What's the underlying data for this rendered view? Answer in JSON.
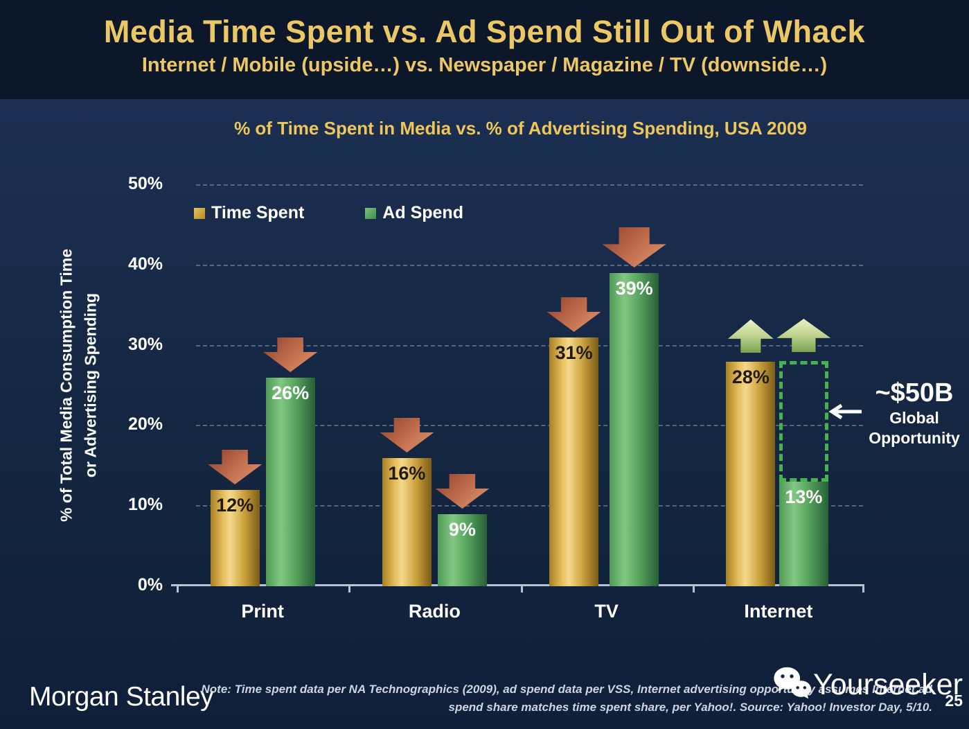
{
  "header": {
    "title": "Media Time Spent vs. Ad Spend Still Out of Whack",
    "subtitle": "Internet / Mobile (upside…) vs. Newspaper / Magazine / TV (downside…)"
  },
  "chart_data": {
    "type": "bar",
    "title": "% of Time Spent in Media vs. % of Advertising Spending, USA 2009",
    "ylabel": [
      "% of Total Media Consumption Time",
      "or Advertising Spending"
    ],
    "ylim": [
      0,
      50
    ],
    "ytick_step": 10,
    "ytick_labels": [
      "0%",
      "10%",
      "20%",
      "30%",
      "40%",
      "50%"
    ],
    "grid": "dashed horizontal",
    "legend_position": "top-left inside plot",
    "legend": [
      {
        "label": "Time Spent",
        "key": "time"
      },
      {
        "label": "Ad Spend",
        "key": "ad"
      }
    ],
    "categories": [
      "Print",
      "Radio",
      "TV",
      "Internet"
    ],
    "series": [
      {
        "name": "Time Spent",
        "key": "time",
        "values": [
          12,
          16,
          31,
          28
        ]
      },
      {
        "name": "Ad Spend",
        "key": "ad",
        "values": [
          26,
          9,
          39,
          13
        ]
      }
    ],
    "bars": [
      {
        "category": "Print",
        "series": "time",
        "value": 12,
        "label": "12%",
        "arrow": "down"
      },
      {
        "category": "Print",
        "series": "ad",
        "value": 26,
        "label": "26%",
        "arrow": "down"
      },
      {
        "category": "Radio",
        "series": "time",
        "value": 16,
        "label": "16%",
        "arrow": "down"
      },
      {
        "category": "Radio",
        "series": "ad",
        "value": 9,
        "label": "9%",
        "arrow": "down"
      },
      {
        "category": "TV",
        "series": "time",
        "value": 31,
        "label": "31%",
        "arrow": "down"
      },
      {
        "category": "TV",
        "series": "ad",
        "value": 39,
        "label": "39%",
        "arrow": "down",
        "arrow_size": "large"
      },
      {
        "category": "Internet",
        "series": "time",
        "value": 28,
        "label": "28%",
        "arrow": "up"
      },
      {
        "category": "Internet",
        "series": "ad",
        "value": 13,
        "label": "13%",
        "arrow": "up",
        "gap_box_to": 28
      }
    ],
    "annotation": {
      "value": "~$50B",
      "lines": [
        "Global",
        "Opportunity"
      ],
      "arrow": "left",
      "points_to": "dashed gap between Internet ad spend 13% and time spent 28%"
    },
    "colors": {
      "time_spent": "#D8A93C",
      "ad_spend": "#4EA157",
      "down_arrow": "#C4704E",
      "up_arrow": "#BBD289",
      "gap_box": "#46B44E",
      "title_gold": "#ECC765",
      "background_navy": "#152742"
    }
  },
  "footer": {
    "brand": "Morgan Stanley",
    "note_line1": "Note: Time spent data per NA Technographics (2009), ad spend data per VSS, Internet advertising opportunity assumes Internet ad",
    "note_line2": "spend share matches time spent share, per Yahoo!. Source: Yahoo! Investor Day, 5/10.",
    "watermark": "Yourseeker",
    "page_number": "25"
  }
}
